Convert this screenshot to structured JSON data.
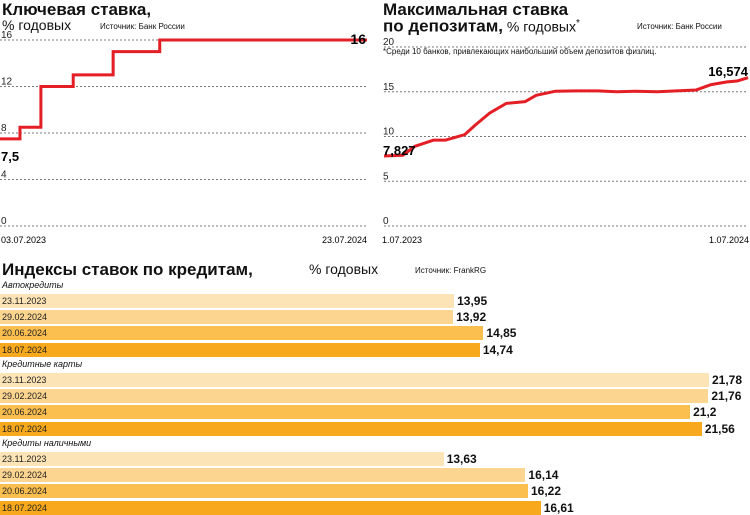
{
  "colors": {
    "line": "#e31e24",
    "grid": "#7a7a7a",
    "bar_shades": [
      "#fde4b6",
      "#fcd590",
      "#fbbf4f",
      "#f8a81c"
    ]
  },
  "key_rate": {
    "title": "Ключевая ставка,",
    "subtitle": "% годовых",
    "source": "Источник: Банк России",
    "last_value_label": "16",
    "first_value_label": "7,5"
  },
  "deposit_rate": {
    "title_line1": "Максимальная ставка",
    "title_line2": "по депозитам,",
    "subtitle": "% годовых",
    "footnote_mark": "*",
    "source": "Источник: Банк России",
    "footnote": "*Среди 10 банков, привлекающих наибольший объем депозитов физлиц.",
    "last_value_label": "16,574",
    "first_value_label": "7,827"
  },
  "loans": {
    "title": "Индексы ставок по кредитам,",
    "subtitle": "% годовых",
    "source": "Источник: FrankRG"
  },
  "chart_data": [
    {
      "type": "line",
      "title": "Ключевая ставка, % годовых",
      "ylim": [
        0,
        16
      ],
      "yticks": [
        0,
        4,
        8,
        12,
        16
      ],
      "grid": true,
      "x_tick_labels": [
        "03.07.2023",
        "23.07.2024"
      ],
      "x": [
        "2023-07-03",
        "2023-07-24",
        "2023-08-15",
        "2023-09-18",
        "2023-10-30",
        "2023-12-18",
        "2024-07-23"
      ],
      "values": [
        7.5,
        8.5,
        12,
        13,
        15,
        16,
        16
      ]
    },
    {
      "type": "line",
      "title": "Максимальная ставка по депозитам, % годовых",
      "ylim": [
        0,
        20
      ],
      "yticks": [
        0,
        5,
        10,
        15,
        20
      ],
      "grid": true,
      "x_tick_labels": [
        "1.07.2023",
        "1.07.2024"
      ],
      "x": [
        "2023-07-01",
        "2023-07-20",
        "2023-08-01",
        "2023-08-20",
        "2023-09-01",
        "2023-09-20",
        "2023-10-01",
        "2023-10-15",
        "2023-11-01",
        "2023-11-20",
        "2023-12-01",
        "2023-12-20",
        "2024-01-10",
        "2024-02-01",
        "2024-02-20",
        "2024-03-10",
        "2024-04-01",
        "2024-04-20",
        "2024-05-10",
        "2024-05-25",
        "2024-06-10",
        "2024-06-20",
        "2024-07-01"
      ],
      "values": [
        7.827,
        7.9,
        8.9,
        9.6,
        9.6,
        10.2,
        11.3,
        12.6,
        13.7,
        13.9,
        14.6,
        15.05,
        15.1,
        15.1,
        15.0,
        15.05,
        15.0,
        15.1,
        15.2,
        15.8,
        16.1,
        16.2,
        16.574
      ]
    },
    {
      "type": "bar",
      "title": "Индексы ставок по кредитам, % годовых",
      "orientation": "horizontal",
      "groups": [
        {
          "name": "Автокредиты",
          "categories": [
            "23.11.2023",
            "29.02.2024",
            "20.06.2024",
            "18.07.2024"
          ],
          "values": [
            13.95,
            13.92,
            14.85,
            14.74
          ],
          "labels": [
            "13,95",
            "13,92",
            "14,85",
            "14,74"
          ]
        },
        {
          "name": "Кредитные карты",
          "categories": [
            "23.11.2023",
            "29.02.2024",
            "20.06.2024",
            "18.07.2024"
          ],
          "values": [
            21.78,
            21.76,
            21.2,
            21.56
          ],
          "labels": [
            "21,78",
            "21,76",
            "21,2",
            "21,56"
          ]
        },
        {
          "name": "Кредиты наличными",
          "categories": [
            "23.11.2023",
            "29.02.2024",
            "20.06.2024",
            "18.07.2024"
          ],
          "values": [
            13.63,
            16.14,
            16.22,
            16.61
          ],
          "labels": [
            "13,63",
            "16,14",
            "16,22",
            "16,61"
          ]
        }
      ]
    }
  ]
}
